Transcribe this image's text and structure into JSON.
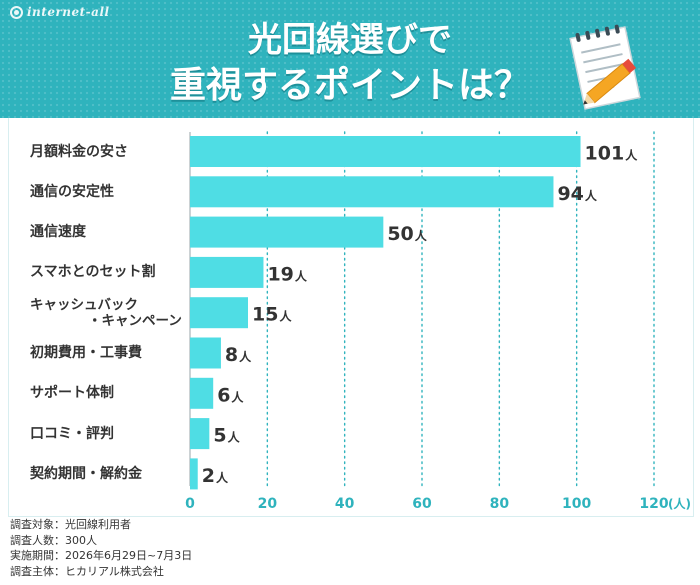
{
  "brand": {
    "name": "internet-all"
  },
  "title": {
    "line1": "光回線選びで",
    "line2": "重視するポイントは？"
  },
  "chart_data": {
    "type": "bar",
    "orientation": "horizontal",
    "categories": [
      "月額料金の安さ",
      "通信の安定性",
      "通信速度",
      "スマホとのセット割",
      "キャッシュバック・キャンペーン",
      "初期費用・工事費",
      "サポート体制",
      "口コミ・評判",
      "契約期間・解約金"
    ],
    "category_lines": [
      [
        "月額料金の安さ"
      ],
      [
        "通信の安定性"
      ],
      [
        "通信速度"
      ],
      [
        "スマホとのセット割"
      ],
      [
        "キャッシュバック",
        "・キャンペーン"
      ],
      [
        "初期費用・工事費"
      ],
      [
        "サポート体制"
      ],
      [
        "口コミ・評判"
      ],
      [
        "契約期間・解約金"
      ]
    ],
    "values": [
      101,
      94,
      50,
      19,
      15,
      8,
      6,
      5,
      2
    ],
    "value_unit": "人",
    "xlim": [
      0,
      120
    ],
    "xticks": [
      0,
      20,
      40,
      60,
      80,
      100,
      120
    ],
    "xunit": "(人)",
    "grid": true,
    "legend": "none",
    "bar_color": "#4fdde4"
  },
  "notes": [
    "調査対象：光回線利用者",
    "調査人数：300人",
    "実施期間：2026年6月29日~7月3日",
    "調査主体：ヒカリアル株式会社"
  ],
  "colors": {
    "header": "#2fb3bd",
    "bar": "#4fdde4",
    "grid": "#2fb3bd",
    "axis_text": "#2fb3bd"
  },
  "icons": {
    "brand": "globe-icon",
    "memo": "memo-pencil-icon"
  }
}
